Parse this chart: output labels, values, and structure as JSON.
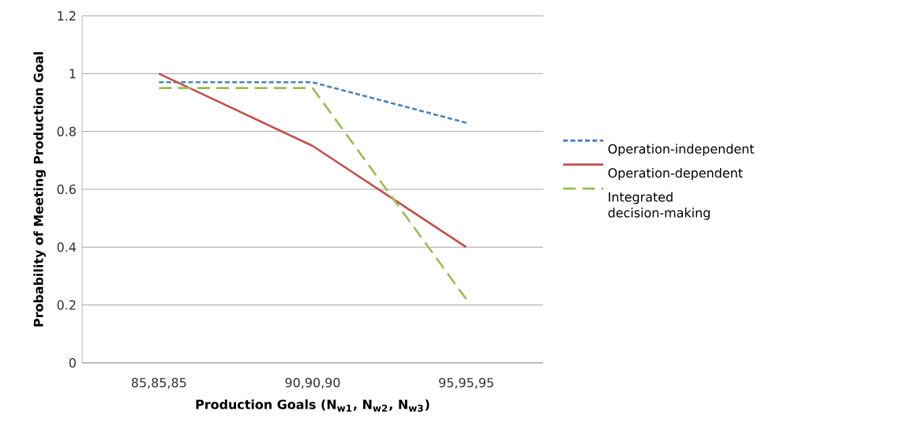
{
  "chart_data": {
    "type": "line",
    "xlabel": "Production Goals (N$_{w1}$, N$_{w2}$, N$_{w3}$)",
    "ylabel": "Probability of Meeting Production Goal",
    "categories": [
      "85,85,85",
      "90,90,90",
      "95,95,95"
    ],
    "series": [
      {
        "name": "Operation-independent",
        "color": "#4f81bd",
        "line_style": "dotted",
        "values": [
          0.97,
          0.97,
          0.83
        ]
      },
      {
        "name": "Operation-dependent",
        "color": "#c0504d",
        "line_style": "solid",
        "values": [
          1.0,
          0.75,
          0.4
        ]
      },
      {
        "name": "Integrated decision-making",
        "color": "#9bbb59",
        "line_style": "dashed",
        "values": [
          0.95,
          0.95,
          0.22
        ]
      }
    ],
    "ylim": [
      0,
      1.2
    ],
    "yticks": [
      0,
      0.2,
      0.4,
      0.6,
      0.8,
      1,
      1.2
    ],
    "grid": "y",
    "legend": "right"
  }
}
